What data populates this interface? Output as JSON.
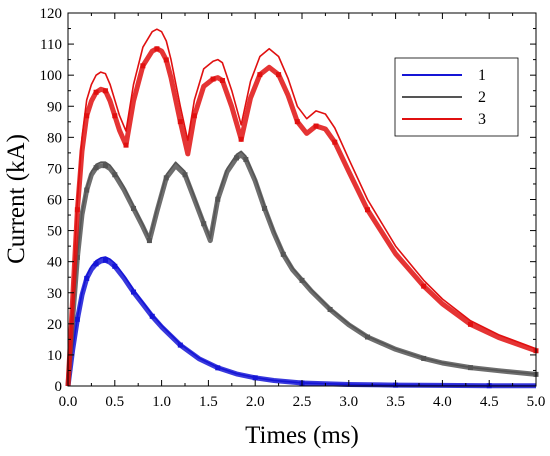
{
  "chart_data": {
    "type": "line",
    "xlabel": "Times (ms)",
    "ylabel": "Current (kA)",
    "xlim": [
      0.0,
      5.0
    ],
    "ylim": [
      0,
      120
    ],
    "xticks": [
      "0.0",
      "0.5",
      "1.0",
      "1.5",
      "2.0",
      "2.5",
      "3.0",
      "3.5",
      "4.0",
      "4.5",
      "5.0"
    ],
    "yticks": [
      "0",
      "10",
      "20",
      "30",
      "40",
      "50",
      "60",
      "70",
      "80",
      "90",
      "100",
      "110",
      "120"
    ],
    "legend_position": "top-right",
    "grid": false,
    "series": [
      {
        "name": "1",
        "color": "#1515d6",
        "x": [
          0,
          0.05,
          0.1,
          0.15,
          0.2,
          0.25,
          0.3,
          0.35,
          0.4,
          0.45,
          0.5,
          0.6,
          0.7,
          0.8,
          0.9,
          1.0,
          1.2,
          1.4,
          1.6,
          1.8,
          2.0,
          2.2,
          2.5,
          3.0,
          3.5,
          4.0,
          4.5,
          5.0
        ],
        "y": [
          0,
          12,
          22,
          30,
          35.5,
          38.5,
          40.3,
          41.2,
          41.5,
          40.8,
          39.5,
          35.5,
          31,
          27,
          23,
          19.5,
          13.5,
          9,
          6,
          4,
          2.7,
          1.8,
          1,
          0.5,
          0.3,
          0.2,
          0.1,
          0.1
        ]
      },
      {
        "name": "2",
        "color": "#555555",
        "x": [
          0,
          0.05,
          0.1,
          0.15,
          0.2,
          0.25,
          0.3,
          0.35,
          0.4,
          0.45,
          0.5,
          0.6,
          0.7,
          0.8,
          0.87,
          0.95,
          1.05,
          1.15,
          1.25,
          1.35,
          1.45,
          1.52,
          1.6,
          1.7,
          1.8,
          1.85,
          1.9,
          2.0,
          2.1,
          2.2,
          2.3,
          2.4,
          2.5,
          2.6,
          2.8,
          3.0,
          3.2,
          3.5,
          3.8,
          4.0,
          4.3,
          4.6,
          5.0
        ],
        "y": [
          0,
          22,
          42,
          56,
          64,
          69,
          71.3,
          72,
          72,
          71,
          69,
          64,
          58,
          52,
          47.5,
          57,
          68,
          72,
          69,
          61,
          53,
          47.5,
          61,
          70,
          74.5,
          75.5,
          74,
          67,
          58,
          50,
          43,
          38,
          34.5,
          31,
          25,
          20,
          16,
          12,
          9,
          7.5,
          6,
          5,
          3.8
        ]
      },
      {
        "name": "3",
        "color": "#e01010",
        "x": [
          0,
          0.05,
          0.1,
          0.15,
          0.2,
          0.25,
          0.3,
          0.35,
          0.4,
          0.45,
          0.5,
          0.55,
          0.62,
          0.7,
          0.8,
          0.9,
          0.95,
          1.0,
          1.05,
          1.1,
          1.2,
          1.28,
          1.35,
          1.45,
          1.55,
          1.6,
          1.65,
          1.75,
          1.85,
          1.95,
          2.05,
          2.15,
          2.25,
          2.35,
          2.45,
          2.55,
          2.65,
          2.75,
          2.85,
          3.0,
          3.2,
          3.5,
          3.8,
          4.0,
          4.3,
          4.6,
          5.0
        ],
        "y": [
          0,
          30,
          60,
          80,
          92,
          97,
          100,
          101,
          100.5,
          97,
          92,
          87,
          82,
          97,
          109,
          114,
          114.8,
          114,
          111,
          105,
          90,
          79,
          92,
          102,
          104.5,
          105,
          104,
          95,
          84,
          98,
          106,
          108.5,
          106,
          99,
          90,
          86,
          88.5,
          87.5,
          83,
          73,
          60,
          45,
          34,
          28,
          21,
          16.5,
          12
        ]
      }
    ]
  }
}
